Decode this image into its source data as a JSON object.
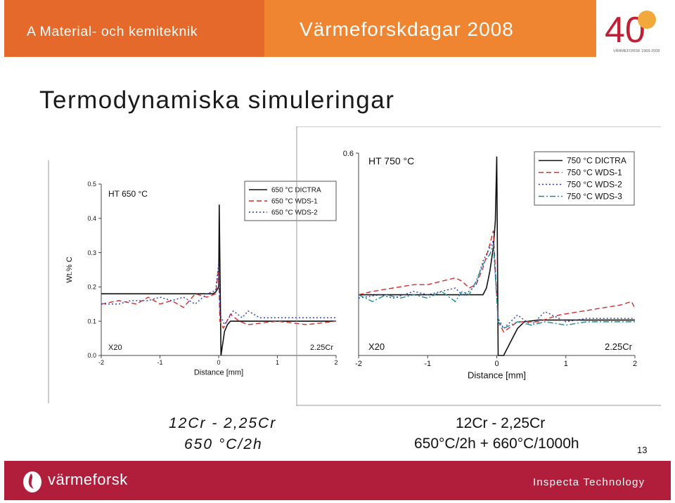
{
  "header": {
    "left_text": "A Material- och kemiteknik",
    "center_text": "Värmeforskdagar 2008",
    "logo_number": "40",
    "logo_caption": "VÄRMEFORSK 1968-2008"
  },
  "slide": {
    "title": "Termodynamiska simuleringar",
    "caption_left": [
      "12Cr - 2,25Cr",
      "650 °C/2h"
    ],
    "caption_right": [
      "12Cr - 2,25Cr",
      "650°C/2h + 660°C/1000h"
    ],
    "page_number": "13"
  },
  "footer": {
    "brand": "värmeforsk",
    "company": "Inspecta Technology"
  },
  "colors": {
    "header_left": "#e4692a",
    "header_mid": "#ef8431",
    "footer": "#b01e3c",
    "dictra": "#111111",
    "wds1": "#d62b2b",
    "wds2": "#2a3bb8",
    "wds3": "#1e8a8c"
  },
  "chart_data": [
    {
      "type": "line",
      "annotation": "HT 650 °C",
      "xlabel": "Distance [mm]",
      "ylabel": "Wt.% C",
      "xlim": [
        -2,
        2
      ],
      "ylim": [
        0,
        0.5
      ],
      "xticks": [
        "-2",
        "-1",
        "0",
        "1",
        "2"
      ],
      "yticks": [
        "0.0",
        "0.1",
        "0.2",
        "0.3",
        "0.4",
        "0.5"
      ],
      "left_label": "X20",
      "right_label": "2.25Cr",
      "legend_position": "top-right",
      "series": [
        {
          "name": "650 °C DICTRA",
          "style": "solid",
          "color": "#111111",
          "x": [
            -2,
            -0.1,
            -0.05,
            0,
            0.01,
            0.04,
            0.1,
            0.15,
            0.2,
            0.3,
            0.5,
            1,
            2
          ],
          "y": [
            0.18,
            0.18,
            0.185,
            0.2,
            0.44,
            0.0,
            0.07,
            0.09,
            0.1,
            0.1,
            0.1,
            0.1,
            0.1
          ]
        },
        {
          "name": "650 °C WDS-1",
          "style": "dashed",
          "color": "#d62b2b",
          "x": [
            -2,
            -1.7,
            -1.4,
            -1.2,
            -1.0,
            -0.8,
            -0.6,
            -0.4,
            -0.2,
            -0.05,
            0,
            0.02,
            0.08,
            0.2,
            0.35,
            0.5,
            1,
            1.5,
            2
          ],
          "y": [
            0.15,
            0.16,
            0.15,
            0.17,
            0.15,
            0.16,
            0.14,
            0.18,
            0.17,
            0.18,
            0.26,
            0.1,
            0.08,
            0.12,
            0.1,
            0.09,
            0.1,
            0.09,
            0.1
          ]
        },
        {
          "name": "650 °C WDS-2",
          "style": "dotted",
          "color": "#2a3bb8",
          "x": [
            -2,
            -1.7,
            -1.5,
            -1.2,
            -1.0,
            -0.8,
            -0.6,
            -0.4,
            -0.2,
            -0.05,
            0,
            0.02,
            0.1,
            0.25,
            0.4,
            0.5,
            0.7,
            1,
            1.5,
            2
          ],
          "y": [
            0.15,
            0.15,
            0.16,
            0.16,
            0.17,
            0.16,
            0.17,
            0.15,
            0.18,
            0.19,
            0.27,
            0.12,
            0.09,
            0.13,
            0.11,
            0.13,
            0.11,
            0.11,
            0.11,
            0.11
          ]
        }
      ]
    },
    {
      "type": "line",
      "annotation": "HT 750 °C",
      "xlabel": "Distance [mm]",
      "ylabel": "",
      "xlim": [
        -2,
        2
      ],
      "ylim": [
        0,
        0.6
      ],
      "xticks": [
        "-2",
        "-1",
        "0",
        "1",
        "2"
      ],
      "yticks": [
        "0.6"
      ],
      "left_label": "X20",
      "right_label": "2.25Cr",
      "legend_position": "top-right",
      "series": [
        {
          "name": "750 °C DICTRA",
          "style": "solid",
          "color": "#111111",
          "x": [
            -2,
            -0.2,
            -0.15,
            -0.1,
            -0.05,
            -0.02,
            0,
            0.02,
            0.1,
            0.2,
            0.3,
            0.4,
            0.6,
            1,
            2
          ],
          "y": [
            0.18,
            0.18,
            0.2,
            0.25,
            0.32,
            0.4,
            0.59,
            0.0,
            0.0,
            0.04,
            0.08,
            0.1,
            0.105,
            0.105,
            0.105
          ]
        },
        {
          "name": "750 °C WDS-1",
          "style": "dashed",
          "color": "#d62b2b",
          "x": [
            -2,
            -1.8,
            -1.5,
            -1.2,
            -1.0,
            -0.8,
            -0.6,
            -0.5,
            -0.4,
            -0.3,
            -0.2,
            -0.1,
            -0.05,
            0.02,
            0.1,
            0.3,
            0.6,
            0.9,
            1.2,
            1.5,
            1.8,
            1.95,
            2
          ],
          "y": [
            0.18,
            0.19,
            0.2,
            0.21,
            0.21,
            0.22,
            0.23,
            0.22,
            0.2,
            0.21,
            0.26,
            0.33,
            0.37,
            0.1,
            0.07,
            0.1,
            0.1,
            0.12,
            0.13,
            0.14,
            0.15,
            0.16,
            0.14
          ]
        },
        {
          "name": "750 °C WDS-2",
          "style": "dotted",
          "color": "#2a3bb8",
          "x": [
            -2,
            -1.7,
            -1.5,
            -1.2,
            -1.0,
            -0.8,
            -0.6,
            -0.5,
            -0.4,
            -0.3,
            -0.2,
            -0.1,
            -0.05,
            0.02,
            0.1,
            0.3,
            0.5,
            0.7,
            1.0,
            1.3,
            1.6,
            2
          ],
          "y": [
            0.17,
            0.18,
            0.17,
            0.19,
            0.18,
            0.19,
            0.2,
            0.18,
            0.19,
            0.21,
            0.28,
            0.32,
            0.34,
            0.11,
            0.08,
            0.12,
            0.09,
            0.13,
            0.1,
            0.11,
            0.11,
            0.11
          ]
        },
        {
          "name": "750 °C WDS-3",
          "style": "dashdot",
          "color": "#1e8a8c",
          "x": [
            -2,
            -1.8,
            -1.6,
            -1.4,
            -1.2,
            -1.0,
            -0.8,
            -0.6,
            -0.5,
            -0.4,
            -0.3,
            -0.2,
            -0.1,
            -0.05,
            0.02,
            0.1,
            0.3,
            0.5,
            0.7,
            1.0,
            1.3,
            1.6,
            2
          ],
          "y": [
            0.18,
            0.16,
            0.18,
            0.17,
            0.18,
            0.17,
            0.19,
            0.16,
            0.19,
            0.18,
            0.22,
            0.27,
            0.3,
            0.33,
            0.1,
            0.08,
            0.1,
            0.09,
            0.1,
            0.09,
            0.1,
            0.1,
            0.1
          ]
        }
      ]
    }
  ]
}
